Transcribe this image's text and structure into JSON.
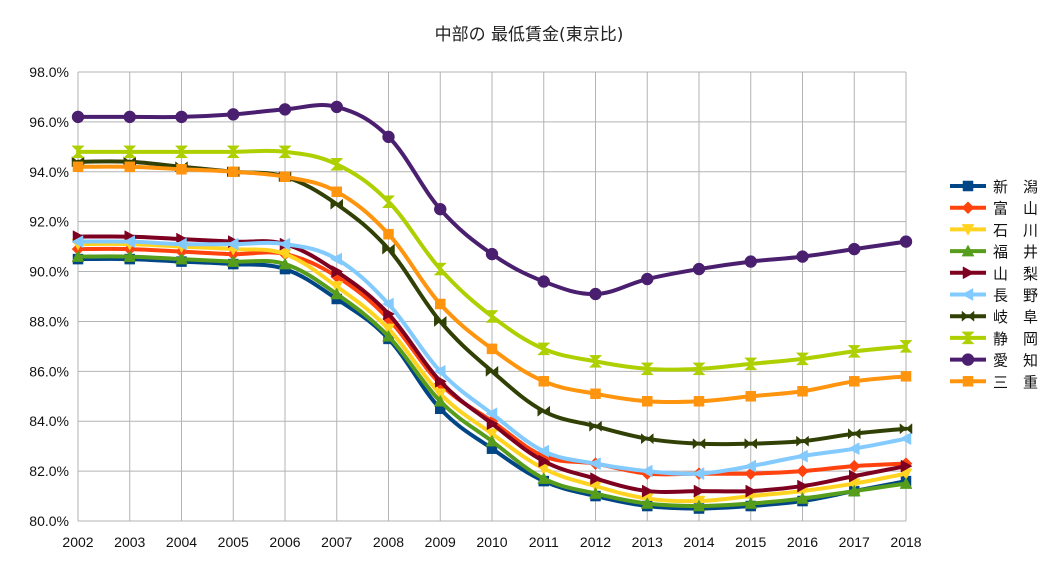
{
  "chart_data": {
    "type": "line",
    "title": "中部の 最低賃金(東京比)",
    "xlabel": "",
    "ylabel": "",
    "x": [
      "2002",
      "2003",
      "2004",
      "2005",
      "2006",
      "2007",
      "2008",
      "2009",
      "2010",
      "2011",
      "2012",
      "2013",
      "2014",
      "2015",
      "2016",
      "2017",
      "2018"
    ],
    "ylim": [
      80.0,
      98.0
    ],
    "yticks": [
      "80.0%",
      "82.0%",
      "84.0%",
      "86.0%",
      "88.0%",
      "90.0%",
      "92.0%",
      "94.0%",
      "96.0%",
      "98.0%"
    ],
    "grid": true,
    "legend_position": "right",
    "series": [
      {
        "name": "新　潟",
        "color": "#004586",
        "marker": "square",
        "values": [
          90.5,
          90.5,
          90.4,
          90.3,
          90.1,
          88.9,
          87.3,
          84.5,
          82.9,
          81.6,
          81.0,
          80.6,
          80.5,
          80.6,
          80.8,
          81.2,
          81.6
        ]
      },
      {
        "name": "富　山",
        "color": "#ff420e",
        "marker": "diamond",
        "values": [
          90.9,
          90.9,
          90.8,
          90.7,
          90.7,
          89.8,
          88.1,
          85.5,
          84.0,
          82.6,
          82.3,
          81.9,
          81.9,
          81.9,
          82.0,
          82.2,
          82.3
        ]
      },
      {
        "name": "石　川",
        "color": "#ffd320",
        "marker": "triangle-down",
        "values": [
          91.1,
          91.1,
          91.0,
          90.9,
          90.7,
          89.4,
          87.7,
          85.1,
          83.5,
          82.1,
          81.4,
          80.9,
          80.8,
          81.0,
          81.2,
          81.5,
          81.9
        ]
      },
      {
        "name": "福　井",
        "color": "#579d1c",
        "marker": "triangle-up",
        "values": [
          90.6,
          90.6,
          90.5,
          90.4,
          90.3,
          89.1,
          87.4,
          84.8,
          83.2,
          81.7,
          81.1,
          80.7,
          80.6,
          80.7,
          80.9,
          81.2,
          81.5
        ]
      },
      {
        "name": "山　梨",
        "color": "#7e0021",
        "marker": "triangle-right",
        "values": [
          91.4,
          91.4,
          91.3,
          91.2,
          91.1,
          90.0,
          88.3,
          85.6,
          83.9,
          82.4,
          81.7,
          81.2,
          81.2,
          81.2,
          81.4,
          81.8,
          82.2
        ]
      },
      {
        "name": "長　野",
        "color": "#83caff",
        "marker": "triangle-left",
        "values": [
          91.2,
          91.2,
          91.1,
          91.1,
          91.1,
          90.5,
          88.7,
          86.0,
          84.3,
          82.8,
          82.3,
          82.0,
          81.9,
          82.2,
          82.6,
          82.9,
          83.3
        ]
      },
      {
        "name": "岐　阜",
        "color": "#314004",
        "marker": "bowtie",
        "values": [
          94.4,
          94.4,
          94.2,
          94.0,
          93.8,
          92.7,
          90.9,
          88.0,
          86.0,
          84.4,
          83.8,
          83.3,
          83.1,
          83.1,
          83.2,
          83.5,
          83.7
        ]
      },
      {
        "name": "静　岡",
        "color": "#aecf00",
        "marker": "hourglass",
        "values": [
          94.8,
          94.8,
          94.8,
          94.8,
          94.8,
          94.3,
          92.8,
          90.1,
          88.2,
          86.9,
          86.4,
          86.1,
          86.1,
          86.3,
          86.5,
          86.8,
          87.0
        ]
      },
      {
        "name": "愛　知",
        "color": "#4b1f6f",
        "marker": "circle",
        "values": [
          96.2,
          96.2,
          96.2,
          96.3,
          96.5,
          96.6,
          95.4,
          92.5,
          90.7,
          89.6,
          89.1,
          89.7,
          90.1,
          90.4,
          90.6,
          90.9,
          91.2
        ]
      },
      {
        "name": "三　重",
        "color": "#ff950e",
        "marker": "square",
        "values": [
          94.2,
          94.2,
          94.1,
          94.0,
          93.8,
          93.2,
          91.5,
          88.7,
          86.9,
          85.6,
          85.1,
          84.8,
          84.8,
          85.0,
          85.2,
          85.6,
          85.8
        ]
      }
    ]
  }
}
